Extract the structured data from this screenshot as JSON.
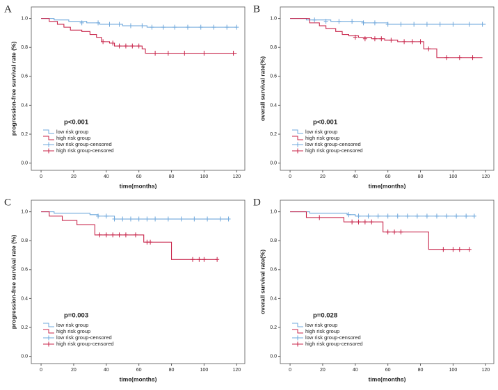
{
  "chart_data": [
    {
      "type": "step",
      "label": "A",
      "annotation": "p<0.001",
      "x_label": "time(months)",
      "y_label": "progression-free survival rate (%)",
      "xlim": [
        -6,
        125
      ],
      "ylim": [
        -0.05,
        1.08
      ],
      "xticks": [
        0,
        20,
        40,
        60,
        80,
        100,
        120
      ],
      "yticks": [
        {
          "value": 0,
          "label": "0.0"
        },
        0.2,
        0.4,
        0.6,
        0.8,
        {
          "value": 1,
          "label": "1.0"
        }
      ],
      "series": [
        {
          "name": "low risk group",
          "color": "#6fa8dc",
          "x": [
            0,
            8,
            17,
            28,
            36,
            50,
            65,
            120
          ],
          "values": [
            1,
            0.99,
            0.98,
            0.97,
            0.96,
            0.95,
            0.94,
            0.94
          ]
        },
        {
          "name": "high risk group",
          "color": "#c8244a",
          "x": [
            0,
            5,
            10,
            14,
            18,
            25,
            30,
            34,
            37,
            42,
            45,
            62,
            64,
            120
          ],
          "values": [
            1,
            0.98,
            0.96,
            0.94,
            0.92,
            0.91,
            0.89,
            0.87,
            0.84,
            0.83,
            0.81,
            0.79,
            0.76,
            0.76
          ]
        },
        {
          "name": "low risk group-censored",
          "color": "#6fa8dc",
          "x": [
            25,
            35,
            42,
            48,
            55,
            62,
            68,
            75,
            82,
            90,
            98,
            106,
            114,
            120
          ],
          "values": [
            0.97,
            0.97,
            0.96,
            0.96,
            0.95,
            0.95,
            0.94,
            0.94,
            0.94,
            0.94,
            0.94,
            0.94,
            0.94,
            0.94
          ]
        },
        {
          "name": "high risk group-censored",
          "color": "#c8244a",
          "x": [
            38,
            44,
            48,
            52,
            56,
            60,
            70,
            78,
            88,
            100,
            118
          ],
          "values": [
            0.84,
            0.83,
            0.81,
            0.81,
            0.81,
            0.81,
            0.76,
            0.76,
            0.76,
            0.76,
            0.76
          ]
        }
      ]
    },
    {
      "type": "step",
      "label": "B",
      "annotation": "p<0.001",
      "x_label": "time(months)",
      "y_label": "overall survival rate(%)",
      "xlim": [
        -6,
        125
      ],
      "ylim": [
        -0.05,
        1.08
      ],
      "xticks": [
        0,
        20,
        40,
        60,
        80,
        100,
        120
      ],
      "yticks": [
        {
          "value": 0,
          "label": "0.0"
        },
        0.2,
        0.4,
        0.6,
        0.8,
        {
          "value": 1,
          "label": "1.0"
        }
      ],
      "series": [
        {
          "name": "low risk group",
          "color": "#6fa8dc",
          "x": [
            0,
            10,
            25,
            45,
            60,
            120
          ],
          "values": [
            1,
            0.99,
            0.98,
            0.97,
            0.96,
            0.96
          ]
        },
        {
          "name": "high risk group",
          "color": "#c8244a",
          "x": [
            0,
            12,
            18,
            22,
            28,
            32,
            36,
            42,
            50,
            58,
            66,
            82,
            90,
            118
          ],
          "values": [
            1,
            0.97,
            0.95,
            0.93,
            0.91,
            0.89,
            0.88,
            0.87,
            0.86,
            0.85,
            0.84,
            0.79,
            0.73,
            0.73
          ]
        },
        {
          "name": "low risk group-censored",
          "color": "#6fa8dc",
          "x": [
            15,
            22,
            30,
            38,
            45,
            52,
            60,
            68,
            76,
            84,
            92,
            100,
            110,
            118
          ],
          "values": [
            0.99,
            0.98,
            0.98,
            0.98,
            0.97,
            0.97,
            0.96,
            0.96,
            0.96,
            0.96,
            0.96,
            0.96,
            0.96,
            0.96
          ]
        },
        {
          "name": "high risk group-censored",
          "color": "#c8244a",
          "x": [
            40,
            46,
            52,
            56,
            62,
            70,
            75,
            80,
            85,
            96,
            104,
            112
          ],
          "values": [
            0.87,
            0.86,
            0.86,
            0.86,
            0.85,
            0.84,
            0.84,
            0.84,
            0.79,
            0.73,
            0.73,
            0.73
          ]
        }
      ]
    },
    {
      "type": "step",
      "label": "C",
      "annotation": "p=0.003",
      "x_label": "time(months)",
      "y_label": "progression-free survival rate (%)",
      "xlim": [
        -6,
        125
      ],
      "ylim": [
        -0.05,
        1.08
      ],
      "xticks": [
        0,
        20,
        40,
        60,
        80,
        100,
        120
      ],
      "yticks": [
        {
          "value": 0,
          "label": "0.0"
        },
        0.2,
        0.4,
        0.6,
        0.8,
        {
          "value": 1,
          "label": "1.0"
        }
      ],
      "series": [
        {
          "name": "low risk group",
          "color": "#6fa8dc",
          "x": [
            0,
            8,
            30,
            35,
            45,
            115
          ],
          "values": [
            1,
            0.99,
            0.98,
            0.97,
            0.95,
            0.95
          ]
        },
        {
          "name": "high risk group",
          "color": "#c8244a",
          "x": [
            0,
            5,
            13,
            22,
            33,
            63,
            80,
            108
          ],
          "values": [
            1,
            0.97,
            0.94,
            0.91,
            0.84,
            0.79,
            0.67,
            0.67
          ]
        },
        {
          "name": "low risk group-censored",
          "color": "#6fa8dc",
          "x": [
            35,
            40,
            45,
            50,
            55,
            60,
            65,
            70,
            78,
            86,
            94,
            102,
            110,
            115
          ],
          "values": [
            0.97,
            0.97,
            0.95,
            0.95,
            0.95,
            0.95,
            0.95,
            0.95,
            0.95,
            0.95,
            0.95,
            0.95,
            0.95,
            0.95
          ]
        },
        {
          "name": "high risk group-censored",
          "color": "#c8244a",
          "x": [
            36,
            40,
            44,
            48,
            52,
            58,
            65,
            67,
            93,
            97,
            100,
            108
          ],
          "values": [
            0.84,
            0.84,
            0.84,
            0.84,
            0.84,
            0.84,
            0.79,
            0.79,
            0.67,
            0.67,
            0.67,
            0.67
          ]
        }
      ]
    },
    {
      "type": "step",
      "label": "D",
      "annotation": "p=0.028",
      "x_label": "time(months)",
      "y_label": "overall survival rate(%)",
      "xlim": [
        -6,
        125
      ],
      "ylim": [
        -0.05,
        1.08
      ],
      "xticks": [
        0,
        20,
        40,
        60,
        80,
        100,
        120
      ],
      "yticks": [
        {
          "value": 0,
          "label": "0.0"
        },
        0.2,
        0.4,
        0.6,
        0.8,
        {
          "value": 1,
          "label": "1.0"
        }
      ],
      "series": [
        {
          "name": "low risk group",
          "color": "#6fa8dc",
          "x": [
            0,
            12,
            35,
            40,
            113
          ],
          "values": [
            1,
            0.99,
            0.98,
            0.97,
            0.97
          ]
        },
        {
          "name": "high risk group",
          "color": "#c8244a",
          "x": [
            0,
            10,
            33,
            57,
            85,
            110
          ],
          "values": [
            1,
            0.96,
            0.93,
            0.86,
            0.74,
            0.74
          ]
        },
        {
          "name": "low risk group-censored",
          "color": "#6fa8dc",
          "x": [
            36,
            42,
            48,
            54,
            60,
            66,
            72,
            78,
            84,
            90,
            96,
            102,
            108,
            113
          ],
          "values": [
            0.98,
            0.97,
            0.97,
            0.97,
            0.97,
            0.97,
            0.97,
            0.97,
            0.97,
            0.97,
            0.97,
            0.97,
            0.97,
            0.97
          ]
        },
        {
          "name": "high risk group-censored",
          "color": "#c8244a",
          "x": [
            18,
            38,
            42,
            46,
            50,
            60,
            64,
            68,
            94,
            100,
            104,
            110
          ],
          "values": [
            0.96,
            0.93,
            0.93,
            0.93,
            0.93,
            0.86,
            0.86,
            0.86,
            0.74,
            0.74,
            0.74,
            0.74
          ]
        }
      ]
    }
  ]
}
